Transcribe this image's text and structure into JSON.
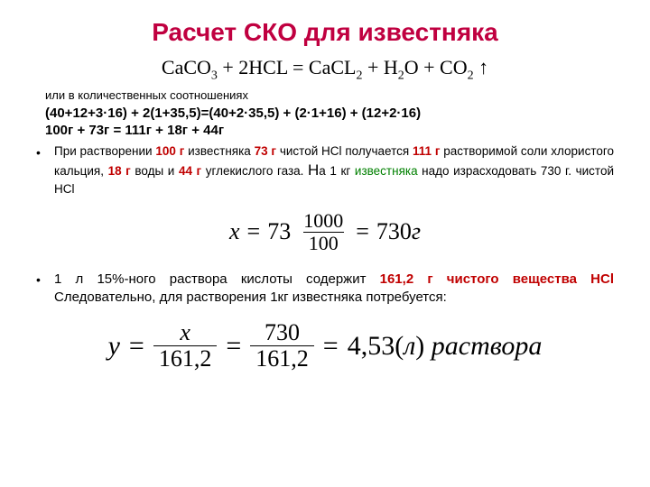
{
  "colors": {
    "title": "#c00040",
    "red": "#c00000",
    "green": "#008000",
    "text": "#000000"
  },
  "title": "Расчет СКО для  известняка",
  "equation": {
    "lhs1": "CaCO",
    "lhs1sub": "3",
    "plus1": " + 2HCL = CaCL",
    "rhs1sub": "2",
    "plus2": " + H",
    "h2osub": "2",
    "o": "O + CO",
    "co2sub": "2",
    "arrow": " ↑"
  },
  "subtitle": "или в количественных соотношениях",
  "calc1": "(40+12+3·16) +  2(1+35,5)=(40+2·35,5) + (2·1+16) + (12+2·16)",
  "calc2": "100г + 73г = 111г + 18г + 44г",
  "para1": {
    "p1": "При растворении ",
    "v100": "100 г",
    "p2": " известняка  ",
    "v73": "73 г",
    "p3": " чистой HCl  получается ",
    "v111": "111 г",
    "p4": " растворимой соли хлористого кальция, ",
    "v18": "18 г",
    "p5": " воды и ",
    "v44": "44 г",
    "p6": " углекислого газа. ",
    "Na": "Н",
    "p7": "а 1 кг ",
    "izv": "известняка",
    "p8": " надо израсходовать 730 г. чистой HCl"
  },
  "formula1": {
    "x": "x",
    "eq1": "=",
    "k73": "73",
    "num": "1000",
    "den": "100",
    "eq2": "=",
    "res": "730",
    "unit": "г"
  },
  "para2": {
    "p1": "1 л 15%-ного раствора кислоты содержит ",
    "v161": "161,2 г чистого вещества HCl",
    "p2": " Следовательно, для растворения 1кг известняка потребуется:"
  },
  "formula2": {
    "y": "y",
    "eq1": "=",
    "numx": "x",
    "den1": "161,2",
    "eq2": "=",
    "num2": "730",
    "den2": "161,2",
    "eq3": "=",
    "res": "4,53(",
    "unit": "л",
    "close": ")",
    "word": " раствора"
  }
}
